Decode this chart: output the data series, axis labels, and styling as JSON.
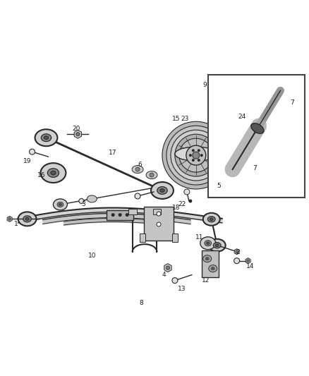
{
  "bg_color": "#ffffff",
  "fig_width": 4.38,
  "fig_height": 5.33,
  "dpi": 100,
  "line_color": "#2a2a2a",
  "label_color": "#1a1a1a",
  "label_fontsize": 6.5,
  "gray_fill": "#c8c8c8",
  "dark_gray": "#888888",
  "mid_gray": "#aaaaaa",
  "light_gray": "#e0e0e0"
}
